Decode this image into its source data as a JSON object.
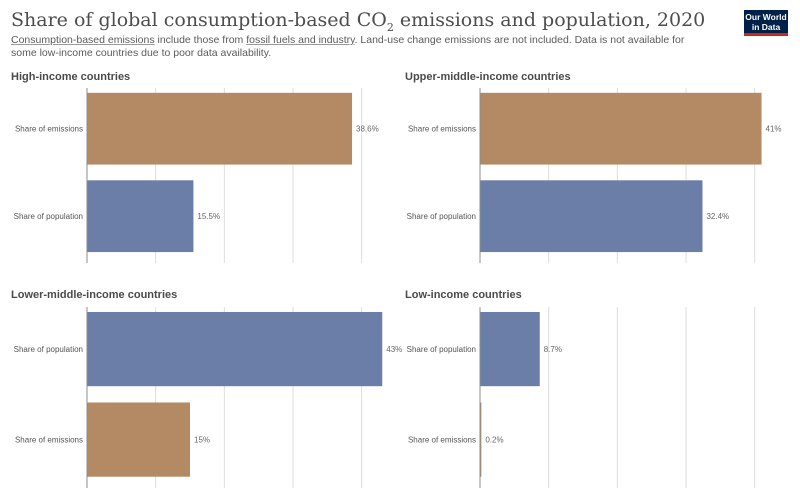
{
  "title": {
    "prefix": "Share of global consumption-based CO",
    "sub": "2",
    "suffix": " emissions and population, 2020"
  },
  "subtitle": {
    "link1": "Consumption-based emissions",
    "text1": " include those from ",
    "link2": "fossil fuels and industry",
    "text2": ". Land-use change emissions are not included. Data is not available for some low-income countries due to poor data availability."
  },
  "logo": {
    "line1": "Our World",
    "line2": "in Data"
  },
  "colors": {
    "emissions": "#b38a63",
    "population": "#6a7ea8",
    "grid": "#dddddd",
    "axis": "#8c8c8c"
  },
  "chart_data": [
    {
      "type": "bar",
      "orientation": "horizontal",
      "title": "High-income countries",
      "categories": [
        "Share of emissions",
        "Share of population"
      ],
      "values": [
        38.6,
        15.5
      ],
      "labels": [
        "38.6%",
        "15.5%"
      ],
      "xlim": [
        0,
        45
      ]
    },
    {
      "type": "bar",
      "orientation": "horizontal",
      "title": "Upper-middle-income countries",
      "categories": [
        "Share of emissions",
        "Share of population"
      ],
      "values": [
        41,
        32.4
      ],
      "labels": [
        "41%",
        "32.4%"
      ],
      "xlim": [
        0,
        45
      ]
    },
    {
      "type": "bar",
      "orientation": "horizontal",
      "title": "Lower-middle-income countries",
      "categories": [
        "Share of population",
        "Share of emissions"
      ],
      "values": [
        43,
        15
      ],
      "labels": [
        "43%",
        "15%"
      ],
      "xlim": [
        0,
        45
      ]
    },
    {
      "type": "bar",
      "orientation": "horizontal",
      "title": "Low-income countries",
      "categories": [
        "Share of population",
        "Share of emissions"
      ],
      "values": [
        8.7,
        0.2
      ],
      "labels": [
        "8.7%",
        "0.2%"
      ],
      "xlim": [
        0,
        45
      ]
    }
  ]
}
